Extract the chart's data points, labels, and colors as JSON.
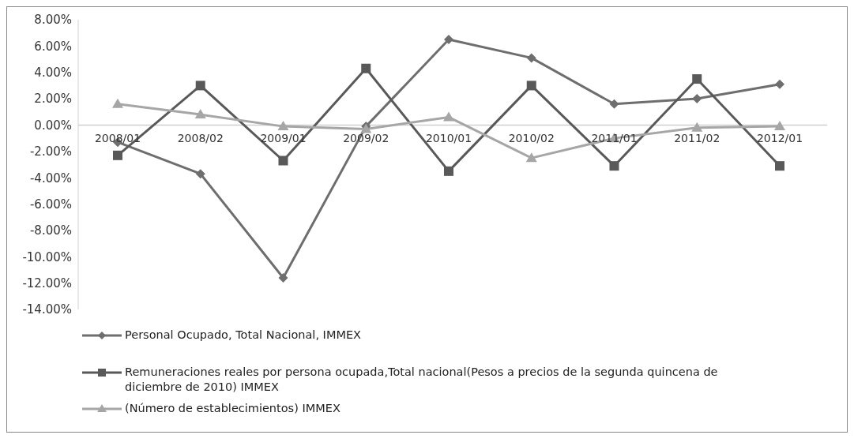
{
  "chart_data": {
    "type": "line",
    "categories": [
      "2008/01",
      "2008/02",
      "2009/01",
      "2009/02",
      "2010/01",
      "2010/02",
      "2011/01",
      "2011/02",
      "2012/01"
    ],
    "series": [
      {
        "name": "Personal Ocupado, Total Nacional, IMMEX",
        "color": "#6e6e6e",
        "marker": "diamond",
        "values": [
          -1.3,
          -3.7,
          -11.6,
          -0.1,
          6.5,
          5.1,
          1.6,
          2.0,
          3.1
        ]
      },
      {
        "name": "Remuneraciones reales por persona ocupada,Total nacional(Pesos a precios de la segunda quincena de diciembre de 2010) IMMEX",
        "color": "#595959",
        "marker": "square",
        "values": [
          -2.3,
          3.0,
          -2.7,
          4.3,
          -3.5,
          3.0,
          -3.1,
          3.5,
          -3.1
        ]
      },
      {
        "name": "(Número de establecimientos) IMMEX",
        "color": "#a6a6a6",
        "marker": "triangle",
        "values": [
          1.6,
          0.8,
          -0.1,
          -0.3,
          0.6,
          -2.5,
          -1.0,
          -0.2,
          -0.1
        ]
      }
    ],
    "ylim": [
      -14,
      8
    ],
    "yticks": [
      {
        "value": -14,
        "label": "-14.00%"
      },
      {
        "value": -12,
        "label": "-12.00%"
      },
      {
        "value": -10,
        "label": "-10.00%"
      },
      {
        "value": -8,
        "label": "-8.00%"
      },
      {
        "value": -6,
        "label": "-6.00%"
      },
      {
        "value": -4,
        "label": "-4.00%"
      },
      {
        "value": -2,
        "label": "-2.00%"
      },
      {
        "value": 0,
        "label": "0.00%"
      },
      {
        "value": 2,
        "label": "2.00%"
      },
      {
        "value": 4,
        "label": "4.00%"
      },
      {
        "value": 6,
        "label": "6.00%"
      },
      {
        "value": 8,
        "label": "8.00%"
      }
    ],
    "grid": false,
    "legend": "bottom",
    "line_style": "solid"
  }
}
